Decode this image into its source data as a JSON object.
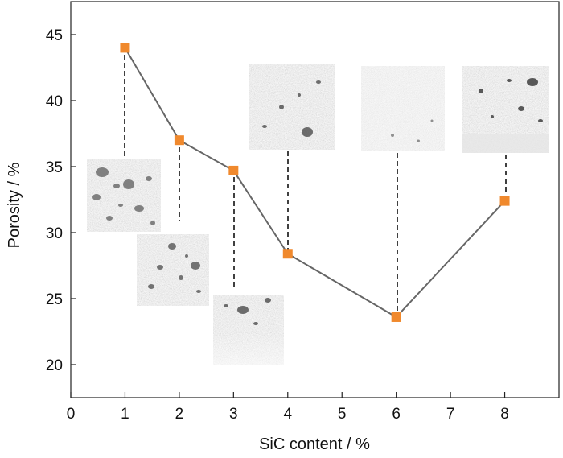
{
  "chart_data": {
    "type": "line",
    "title": "",
    "xlabel": "SiC content / %",
    "ylabel": "Porosity / %",
    "xlim": [
      0,
      9
    ],
    "ylim": [
      17.5,
      47.5
    ],
    "x_ticks": [
      "0",
      "1",
      "2",
      "3",
      "4",
      "5",
      "6",
      "7",
      "8"
    ],
    "y_ticks": [
      "20",
      "25",
      "30",
      "35",
      "40",
      "45"
    ],
    "x_tick_values": [
      0,
      1,
      2,
      3,
      4,
      5,
      6,
      7,
      8
    ],
    "y_tick_values": [
      20,
      25,
      30,
      35,
      40,
      45
    ],
    "grid": false,
    "series": [
      {
        "x": [
          1,
          2,
          3,
          4,
          6,
          8
        ],
        "y": [
          44.0,
          37.0,
          34.7,
          28.4,
          23.6,
          32.4
        ],
        "line_color": "#666666",
        "marker_color": "#f0892d",
        "marker": "square"
      }
    ],
    "annotations": [
      "micrograph inset for SiC 1 %",
      "micrograph inset for SiC 2 %",
      "micrograph inset for SiC 3 %",
      "micrograph inset for SiC 4 %",
      "micrograph inset for SiC 6 %",
      "micrograph inset for SiC 8 %"
    ]
  }
}
